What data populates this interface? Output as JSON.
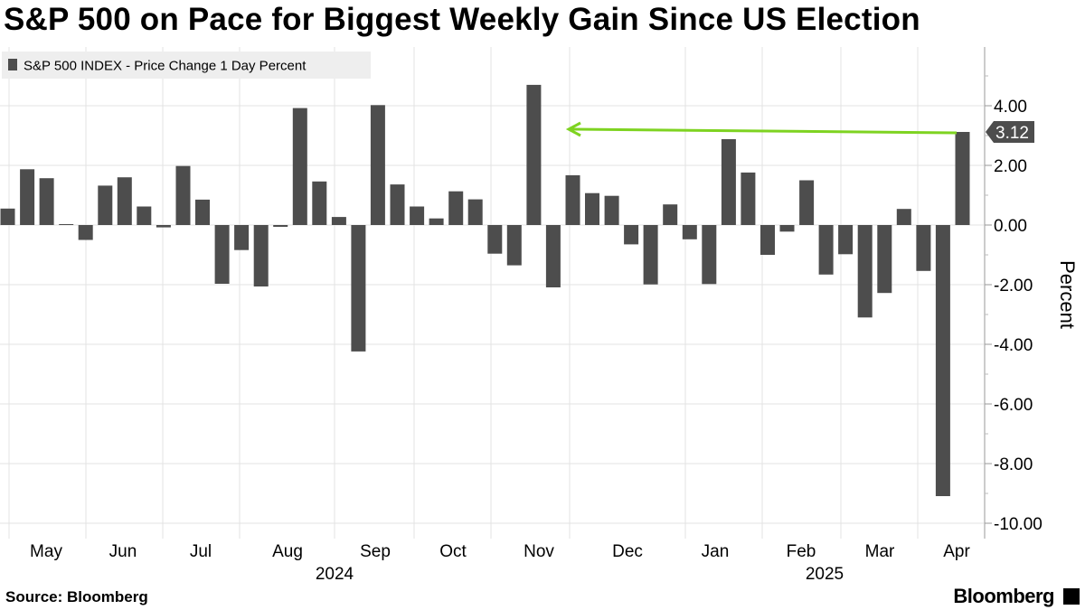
{
  "title": "S&P 500 on Pace for Biggest Weekly Gain Since US Election",
  "source": "Source: Bloomberg",
  "brand": "Bloomberg",
  "chart_data": {
    "type": "bar",
    "legend": "S&P 500 INDEX - Price Change 1 Day Percent",
    "legend_position": "top-left",
    "ylabel": "Percent",
    "ylim": [
      -10.5,
      6
    ],
    "yticks": [
      "4.00",
      "2.00",
      "0.00",
      "-2.00",
      "-4.00",
      "-6.00",
      "-8.00",
      "-10.00"
    ],
    "ytick_values": [
      4,
      2,
      0,
      -2,
      -4,
      -6,
      -8,
      -10
    ],
    "month_labels": [
      "May",
      "Jun",
      "Jul",
      "Aug",
      "Sep",
      "Oct",
      "Nov",
      "Dec",
      "Jan",
      "Feb",
      "Mar",
      "Apr"
    ],
    "year_labels": [
      "2024",
      "2025"
    ],
    "grid": true,
    "bar_color": "#4d4d4d",
    "annotation": {
      "value_label": "3.12",
      "arrow_color": "#7ed321"
    },
    "values": [
      0.55,
      1.87,
      1.57,
      0.03,
      -0.5,
      1.32,
      1.6,
      0.62,
      -0.08,
      1.98,
      0.85,
      -1.97,
      -0.84,
      -2.06,
      -0.06,
      3.92,
      1.46,
      0.27,
      -4.24,
      4.02,
      1.36,
      0.62,
      0.22,
      1.13,
      0.86,
      -0.96,
      -1.35,
      4.7,
      -2.09,
      1.67,
      1.07,
      0.98,
      -0.65,
      -1.99,
      0.69,
      -0.48,
      -1.98,
      2.88,
      1.76,
      -1.0,
      -0.22,
      1.5,
      -1.66,
      -0.98,
      -3.1,
      -2.28,
      0.54,
      -1.54,
      -9.09,
      3.12
    ]
  }
}
